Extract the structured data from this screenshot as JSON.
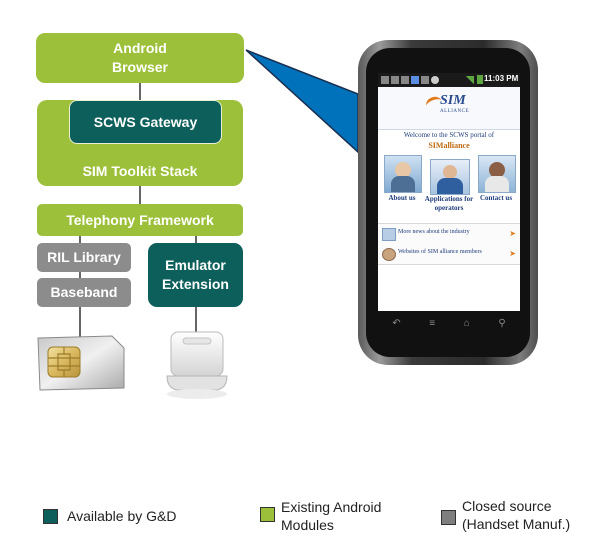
{
  "stack": {
    "android_browser": "Android\nBrowser",
    "scws_gateway": "SCWS Gateway",
    "sim_toolkit_stack": "SIM Toolkit Stack",
    "telephony_framework": "Telephony Framework",
    "ril_library": "RIL Library",
    "baseband": "Baseband",
    "emulator_extension": "Emulator\nExtension"
  },
  "phone": {
    "status_time": "11:03 PM",
    "logo_text": "SIM",
    "logo_sub": "ALLIANCE",
    "welcome_line": "Welcome to the SCWS portal of",
    "welcome_brand": "SIMalliance",
    "tiles": [
      "About us",
      "Applications for operators",
      "Contact us"
    ],
    "links": [
      "More news about the industry",
      "Websites of SIM alliance members"
    ]
  },
  "legend": [
    {
      "label": "Available by G&D",
      "color": "#0d5f5c"
    },
    {
      "label": "Existing Android\nModules",
      "color": "#9dc03a"
    },
    {
      "label": "Closed source\n(Handset Manuf.)",
      "color": "#7f7f7f"
    }
  ],
  "colors": {
    "existing_android": "#9dc03a",
    "available_gd": "#0d5f5c",
    "closed_source": "#8c8c8c",
    "callout": "#0072bc"
  }
}
